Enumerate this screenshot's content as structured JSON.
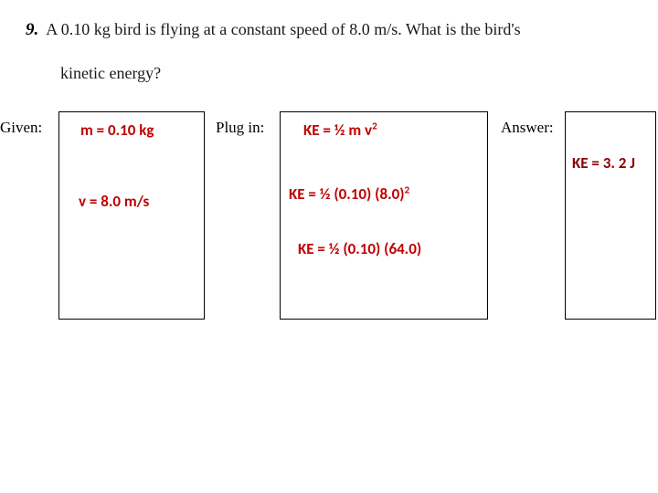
{
  "question": {
    "number": "9.",
    "line1": "A 0.10 kg bird is flying at a constant speed of 8.0 m/s. What is the bird's",
    "line2": "kinetic energy?"
  },
  "labels": {
    "given": "Given:",
    "plugin": "Plug in:",
    "answer": "Answer:"
  },
  "given": {
    "mass": "m = 0.10 kg",
    "velocity": "v = 8.0 m/s"
  },
  "plugin": {
    "formula_prefix": "KE = ½ m v",
    "formula_exp": "2",
    "step2_prefix": "KE = ½ (0.10) (8.0)",
    "step2_exp": "2",
    "step3": "KE = ½ (0.10) (64.0)"
  },
  "answer": {
    "text": "KE = 3. 2 J"
  },
  "colors": {
    "red": "#c00000",
    "darkred": "#8b0000",
    "border": "#000000",
    "background": "#ffffff"
  }
}
